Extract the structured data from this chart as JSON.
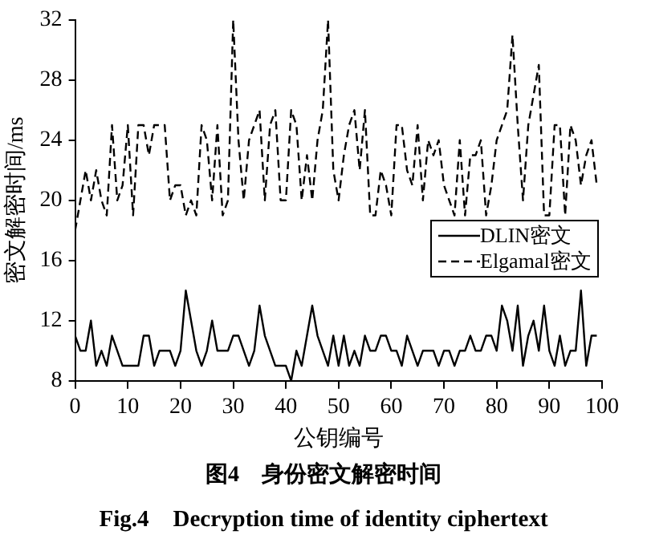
{
  "chart_data": {
    "type": "line",
    "title": "图4　身份密文解密时间",
    "subtitle": "Fig.4　Decryption time of identity ciphertext",
    "xlabel": "公钥编号",
    "ylabel": "密文解密时间/ms",
    "x": [
      0,
      1,
      2,
      3,
      4,
      5,
      6,
      7,
      8,
      9,
      10,
      11,
      12,
      13,
      14,
      15,
      16,
      17,
      18,
      19,
      20,
      21,
      22,
      23,
      24,
      25,
      26,
      27,
      28,
      29,
      30,
      31,
      32,
      33,
      34,
      35,
      36,
      37,
      38,
      39,
      40,
      41,
      42,
      43,
      44,
      45,
      46,
      47,
      48,
      49,
      50,
      51,
      52,
      53,
      54,
      55,
      56,
      57,
      58,
      59,
      60,
      61,
      62,
      63,
      64,
      65,
      66,
      67,
      68,
      69,
      70,
      71,
      72,
      73,
      74,
      75,
      76,
      77,
      78,
      79,
      80,
      81,
      82,
      83,
      84,
      85,
      86,
      87,
      88,
      89,
      90,
      91,
      92,
      93,
      94,
      95,
      96,
      97,
      98,
      99
    ],
    "series": [
      {
        "name": "DLIN密文",
        "color": "#000000",
        "line_style": "solid",
        "values": [
          11,
          10,
          10,
          12,
          9,
          10,
          9,
          11,
          10,
          9,
          9,
          9,
          9,
          11,
          11,
          9,
          10,
          10,
          10,
          9,
          10,
          14,
          12,
          10,
          9,
          10,
          12,
          10,
          10,
          10,
          11,
          11,
          10,
          9,
          10,
          13,
          11,
          10,
          9,
          9,
          9,
          8,
          10,
          9,
          11,
          13,
          11,
          10,
          9,
          11,
          9,
          11,
          9,
          10,
          9,
          11,
          10,
          10,
          11,
          11,
          10,
          10,
          9,
          11,
          10,
          9,
          10,
          10,
          10,
          9,
          10,
          10,
          9,
          10,
          10,
          11,
          10,
          10,
          11,
          11,
          10,
          13,
          12,
          10,
          13,
          9,
          11,
          12,
          10,
          13,
          10,
          9,
          11,
          9,
          10,
          10,
          14,
          9,
          11,
          11
        ]
      },
      {
        "name": "Elgamal密文",
        "color": "#000000",
        "line_style": "dashed",
        "values": [
          18,
          20,
          22,
          20,
          22,
          20,
          19,
          25,
          20,
          21,
          25,
          19,
          25,
          25,
          23,
          25,
          25,
          25,
          20,
          21,
          21,
          19,
          20,
          19,
          25,
          24,
          20,
          25,
          19,
          20,
          32,
          24,
          20,
          24,
          25,
          26,
          20,
          25,
          26,
          20,
          20,
          26,
          25,
          20,
          23,
          20,
          24,
          26,
          32,
          22,
          20,
          23,
          25,
          26,
          22,
          26,
          19,
          19,
          22,
          21,
          19,
          25,
          25,
          22,
          21,
          25,
          20,
          24,
          23,
          24,
          21,
          20,
          19,
          24,
          19,
          23,
          23,
          24,
          19,
          21,
          24,
          25,
          26,
          31,
          25,
          20,
          25,
          27,
          29,
          19,
          19,
          25,
          25,
          19,
          25,
          24,
          21,
          23,
          24,
          21
        ]
      }
    ],
    "xlim": [
      0,
      100
    ],
    "xticks": [
      0,
      10,
      20,
      30,
      40,
      50,
      60,
      70,
      80,
      90,
      100
    ],
    "ylim": [
      8,
      32
    ],
    "yticks": [
      8,
      12,
      16,
      20,
      24,
      28,
      32
    ],
    "grid": false,
    "legend": "right",
    "marker": "none"
  }
}
